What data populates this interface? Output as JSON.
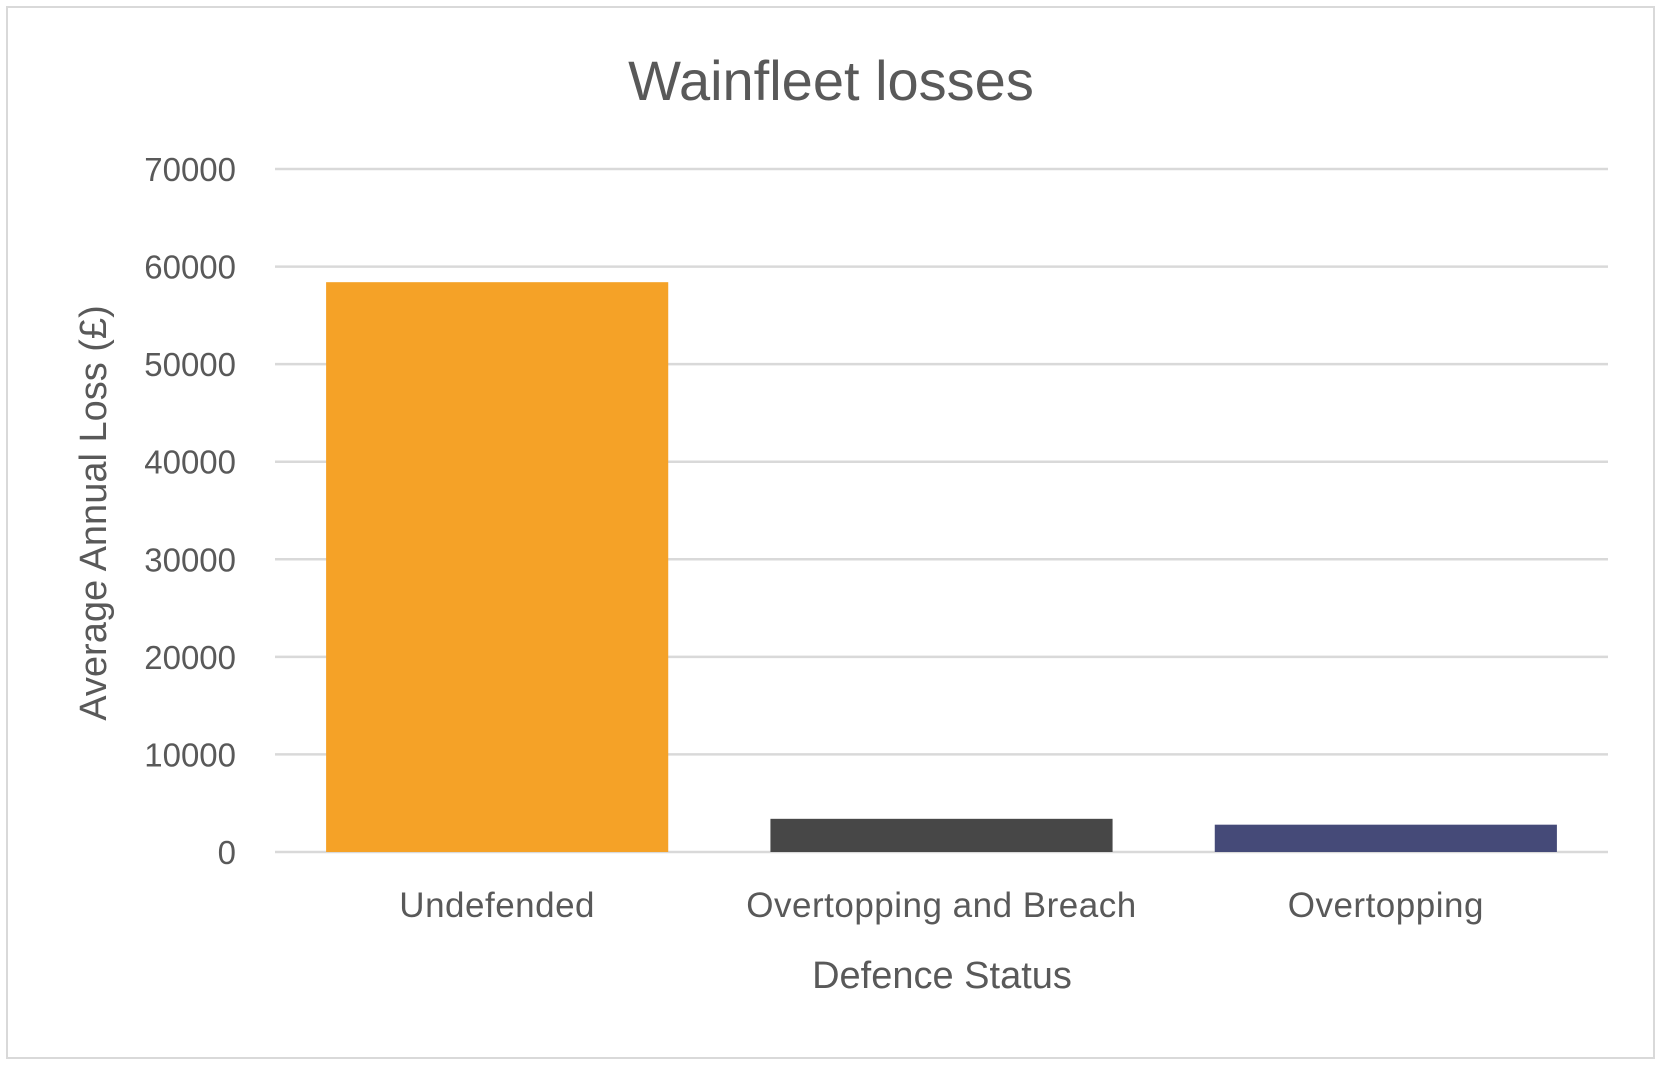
{
  "chart_data": {
    "type": "bar",
    "title": "Wainfleet losses",
    "xlabel": "Defence Status",
    "ylabel": "Average Annual Loss (£)",
    "categories": [
      "Undefended",
      "Overtopping and Breach",
      "Overtopping"
    ],
    "values": [
      58400,
      3400,
      2800
    ],
    "colors": [
      "#f5a227",
      "#474747",
      "#454a78"
    ],
    "ylim": [
      0,
      70000
    ],
    "yticks": [
      0,
      10000,
      20000,
      30000,
      40000,
      50000,
      60000,
      70000
    ],
    "grid": true,
    "legend": "none"
  }
}
